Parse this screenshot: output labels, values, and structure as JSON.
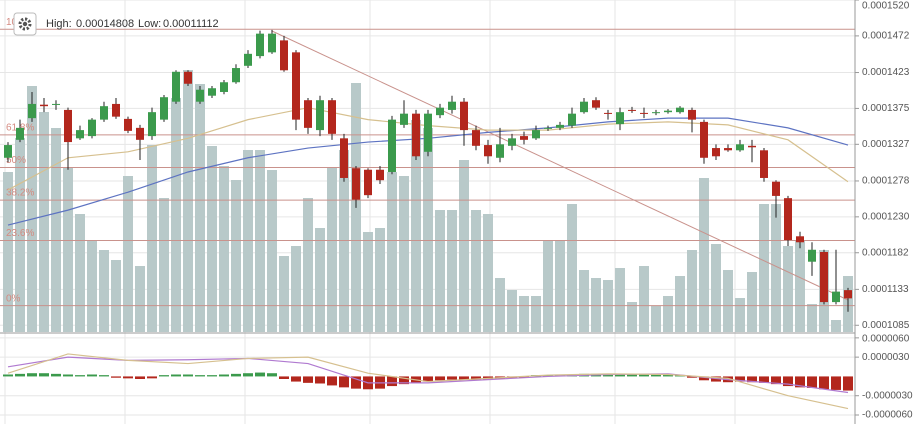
{
  "header": {
    "high_label": "High:",
    "high": 0.00014808,
    "low_label": "Low:",
    "low": 0.00011112
  },
  "chart_data": [
    {
      "type": "candlestick",
      "up_color": "#3b9a4c",
      "down_color": "#b3271d",
      "ylim": [
        0.0001076,
        0.000152
      ],
      "yticks": [
        {
          "value": 0.000152,
          "label": "0.0001520"
        },
        {
          "value": 0.0001472,
          "label": "0.0001472"
        },
        {
          "value": 0.0001423,
          "label": "0.0001423"
        },
        {
          "value": 0.0001375,
          "label": "0.0001375"
        },
        {
          "value": 0.0001327,
          "label": "0.0001327"
        },
        {
          "value": 0.0001278,
          "label": "0.0001278"
        },
        {
          "value": 0.000123,
          "label": "0.0001230"
        },
        {
          "value": 0.0001182,
          "label": "0.0001182"
        },
        {
          "value": 0.0001133,
          "label": "0.0001133"
        },
        {
          "value": 0.0001085,
          "label": "0.0001085"
        }
      ],
      "grid": true,
      "open": [
        0.0001309,
        0.0001333,
        0.0001362,
        0.000138,
        0.000138,
        0.0001373,
        0.0001335,
        0.0001338,
        0.000136,
        0.0001381,
        0.0001361,
        0.0001349,
        0.0001338,
        0.000136,
        0.0001384,
        0.0001424,
        0.0001384,
        0.0001392,
        0.0001397,
        0.000141,
        0.0001432,
        0.0001445,
        0.000145,
        0.0001466,
        0.000145,
        0.0001386,
        0.0001346,
        0.0001386,
        0.0001335,
        0.0001295,
        0.0001293,
        0.0001293,
        0.000129,
        0.0001353,
        0.0001368,
        0.0001317,
        0.0001366,
        0.0001373,
        0.0001384,
        0.0001346,
        0.0001326,
        0.0001309,
        0.0001325,
        0.0001338,
        0.0001335,
        0.0001348,
        0.0001349,
        0.0001352,
        0.000137,
        0.0001386,
        0.0001369,
        0.0001354,
        0.0001373,
        0.0001369,
        0.0001369,
        0.000137,
        0.000137,
        0.0001373,
        0.0001357,
        0.0001322,
        0.0001322,
        0.0001319,
        0.0001325,
        0.0001319,
        0.0001277,
        0.0001255,
        0.0001204,
        0.000117,
        0.0001183,
        0.0001116,
        0.0001132
      ],
      "high": [
        0.000133,
        0.000136,
        0.0001397,
        0.0001389,
        0.0001386,
        0.0001376,
        0.0001352,
        0.0001362,
        0.0001384,
        0.0001389,
        0.0001364,
        0.0001353,
        0.0001376,
        0.0001393,
        0.0001426,
        0.0001426,
        0.0001405,
        0.0001405,
        0.0001413,
        0.0001434,
        0.0001453,
        0.0001479,
        0.000148,
        0.0001472,
        0.0001453,
        0.0001389,
        0.0001392,
        0.0001389,
        0.0001341,
        0.0001298,
        0.0001295,
        0.0001298,
        0.0001365,
        0.0001386,
        0.0001373,
        0.0001373,
        0.0001381,
        0.0001392,
        0.0001389,
        0.0001352,
        0.0001333,
        0.0001349,
        0.0001341,
        0.0001344,
        0.0001352,
        0.0001352,
        0.0001357,
        0.0001376,
        0.0001389,
        0.000139,
        0.0001373,
        0.0001376,
        0.0001377,
        0.0001376,
        0.0001373,
        0.0001374,
        0.0001378,
        0.0001376,
        0.000136,
        0.0001327,
        0.0001327,
        0.0001333,
        0.0001333,
        0.0001322,
        0.0001279,
        0.0001258,
        0.000121,
        0.0001196,
        0.0001186,
        0.0001186,
        0.0001135
      ],
      "low": [
        0.0001303,
        0.000133,
        0.0001357,
        0.000137,
        0.0001373,
        0.0001293,
        0.0001333,
        0.0001335,
        0.0001357,
        0.0001361,
        0.0001342,
        0.0001306,
        0.0001333,
        0.0001357,
        0.0001381,
        0.0001405,
        0.0001381,
        0.0001389,
        0.0001394,
        0.0001408,
        0.0001429,
        0.0001442,
        0.0001448,
        0.0001424,
        0.0001346,
        0.0001341,
        0.0001338,
        0.0001333,
        0.0001277,
        0.0001242,
        0.0001255,
        0.0001274,
        0.0001287,
        0.0001349,
        0.0001306,
        0.0001311,
        0.0001362,
        0.0001368,
        0.0001325,
        0.0001319,
        0.0001301,
        0.0001303,
        0.0001319,
        0.0001327,
        0.0001333,
        0.0001345,
        0.0001346,
        0.0001349,
        0.0001368,
        0.0001373,
        0.000136,
        0.0001346,
        0.0001369,
        0.0001362,
        0.0001366,
        0.0001368,
        0.0001368,
        0.0001343,
        0.0001301,
        0.0001306,
        0.0001317,
        0.0001317,
        0.0001303,
        0.0001277,
        0.0001229,
        0.0001191,
        0.0001188,
        0.0001151,
        0.0001113,
        0.0001113,
        0.0001103
      ],
      "close": [
        0.0001326,
        0.0001349,
        0.0001381,
        0.0001378,
        0.0001381,
        0.000133,
        0.0001346,
        0.000136,
        0.0001378,
        0.0001364,
        0.0001345,
        0.0001333,
        0.000137,
        0.000139,
        0.0001424,
        0.0001408,
        0.00014,
        0.0001402,
        0.000141,
        0.0001429,
        0.0001448,
        0.0001475,
        0.0001475,
        0.0001426,
        0.000136,
        0.0001349,
        0.0001386,
        0.0001341,
        0.0001282,
        0.0001253,
        0.0001259,
        0.0001279,
        0.000136,
        0.0001368,
        0.0001311,
        0.0001368,
        0.0001376,
        0.0001384,
        0.0001346,
        0.0001325,
        0.0001311,
        0.0001327,
        0.0001335,
        0.0001333,
        0.0001346,
        0.0001349,
        0.0001353,
        0.0001368,
        0.0001384,
        0.0001376,
        0.0001368,
        0.000137,
        0.0001372,
        0.0001368,
        0.000137,
        0.0001372,
        0.0001376,
        0.000136,
        0.0001309,
        0.0001311,
        0.0001319,
        0.0001327,
        0.0001323,
        0.0001282,
        0.0001258,
        0.0001199,
        0.0001196,
        0.0001186,
        0.0001116,
        0.000113,
        0.0001121
      ],
      "volume": {
        "color": "#b8c9c9",
        "ylim": [
          0,
          332
        ],
        "values": [
          160,
          194,
          246,
          220,
          204,
          164,
          118,
          92,
          82,
          72,
          156,
          66,
          187,
          134,
          234,
          262,
          248,
          186,
          166,
          152,
          182,
          182,
          162,
          76,
          86,
          134,
          104,
          164,
          182,
          249,
          100,
          104,
          160,
          156,
          212,
          204,
          122,
          122,
          172,
          122,
          118,
          54,
          42,
          36,
          36,
          92,
          92,
          128,
          62,
          54,
          52,
          64,
          30,
          66,
          26,
          36,
          56,
          82,
          154,
          88,
          62,
          34,
          60,
          128,
          128,
          86,
          92,
          28,
          82,
          12,
          56
        ]
      },
      "moving_averages": [
        {
          "color": "#5d73c2",
          "x": [
            0,
            5,
            10,
            15,
            20,
            25,
            30,
            35,
            40,
            45,
            50,
            55,
            60,
            65,
            70
          ],
          "values": [
            0.0001219,
            0.0001239,
            0.0001263,
            0.000129,
            0.0001309,
            0.0001322,
            0.000133,
            0.0001335,
            0.0001343,
            0.0001349,
            0.0001357,
            0.0001362,
            0.0001362,
            0.0001349,
            0.0001326
          ]
        },
        {
          "color": "#d6c08f",
          "x": [
            0,
            5,
            10,
            15,
            20,
            25,
            30,
            35,
            40,
            45,
            50,
            55,
            60,
            65,
            70
          ],
          "values": [
            0.0001266,
            0.0001309,
            0.0001317,
            0.0001335,
            0.000136,
            0.0001376,
            0.000136,
            0.0001352,
            0.0001346,
            0.0001346,
            0.0001354,
            0.0001357,
            0.0001353,
            0.0001333,
            0.0001277
          ]
        }
      ],
      "fib_color": "#c9928c",
      "fib_levels": [
        {
          "label": "100%",
          "value": 0.00014808
        },
        {
          "label": "61.8%",
          "value": 0.00013396
        },
        {
          "label": "50%",
          "value": 0.0001296
        },
        {
          "label": "38.2%",
          "value": 0.00012524
        },
        {
          "label": "23.6%",
          "value": 0.00011984
        },
        {
          "label": "0%",
          "value": 0.00011112
        }
      ]
    },
    {
      "type": "macd",
      "ylim": [
        -7.4e-06,
        6.6e-06
      ],
      "yticks": [
        {
          "value": 6e-06,
          "label": "0.0000060"
        },
        {
          "value": 3e-06,
          "label": "0.0000030"
        },
        {
          "value": -3e-06,
          "label": "-0.0000030"
        },
        {
          "value": -6e-06,
          "label": "-0.0000060"
        }
      ],
      "up_color": "#3b9a4c",
      "down_color": "#b3271d",
      "histogram": [
        3e-07,
        4e-07,
        5e-07,
        5e-07,
        4e-07,
        3e-07,
        2e-07,
        3e-07,
        2e-07,
        -2e-07,
        -3e-07,
        -4e-07,
        -3e-07,
        2e-07,
        3e-07,
        3e-07,
        2e-07,
        2e-07,
        3e-07,
        4e-07,
        5e-07,
        6e-07,
        5e-07,
        -4e-07,
        -8e-07,
        -1e-06,
        -1.1e-06,
        -1.4e-06,
        -1.7e-06,
        -1.9e-06,
        -2e-06,
        -1.9e-06,
        -1.5e-06,
        -1.2e-06,
        -1e-06,
        -8e-07,
        -6e-07,
        -5e-07,
        -5e-07,
        -6e-07,
        -5e-07,
        -4e-07,
        -3e-07,
        -2e-07,
        2e-07,
        2e-07,
        3e-07,
        3e-07,
        4e-07,
        4e-07,
        3e-07,
        3e-07,
        3e-07,
        3e-07,
        3e-07,
        3e-07,
        2e-07,
        -2e-07,
        -6e-07,
        -8e-07,
        -9e-07,
        -8e-07,
        -9e-07,
        -1e-06,
        -1.2e-06,
        -1.5e-06,
        -1.7e-06,
        -1.8e-06,
        -2e-06,
        -2.1e-06,
        -2.2e-06
      ],
      "lines": [
        {
          "color": "#b07ad0",
          "x": [
            0,
            5,
            10,
            15,
            20,
            25,
            30,
            35,
            40,
            45,
            50,
            55,
            60,
            65,
            70
          ],
          "values": [
            1.5e-06,
            3e-06,
            2.5e-06,
            2.6e-06,
            2.8e-06,
            2e-06,
            -1e-06,
            -1e-06,
            -5e-07,
            0,
            3e-07,
            4e-07,
            -5e-07,
            -1.2e-06,
            -2.5e-06
          ]
        },
        {
          "color": "#d6c08f",
          "x": [
            0,
            5,
            10,
            15,
            20,
            25,
            30,
            35,
            40,
            45,
            50,
            55,
            60,
            65,
            70
          ],
          "values": [
            5e-07,
            3.5e-06,
            2.5e-06,
            2e-06,
            2.8e-06,
            3e-06,
            5e-07,
            -8e-07,
            -3e-07,
            2e-07,
            4e-07,
            3e-07,
            -3e-07,
            -3e-06,
            -5e-06
          ]
        }
      ]
    }
  ]
}
